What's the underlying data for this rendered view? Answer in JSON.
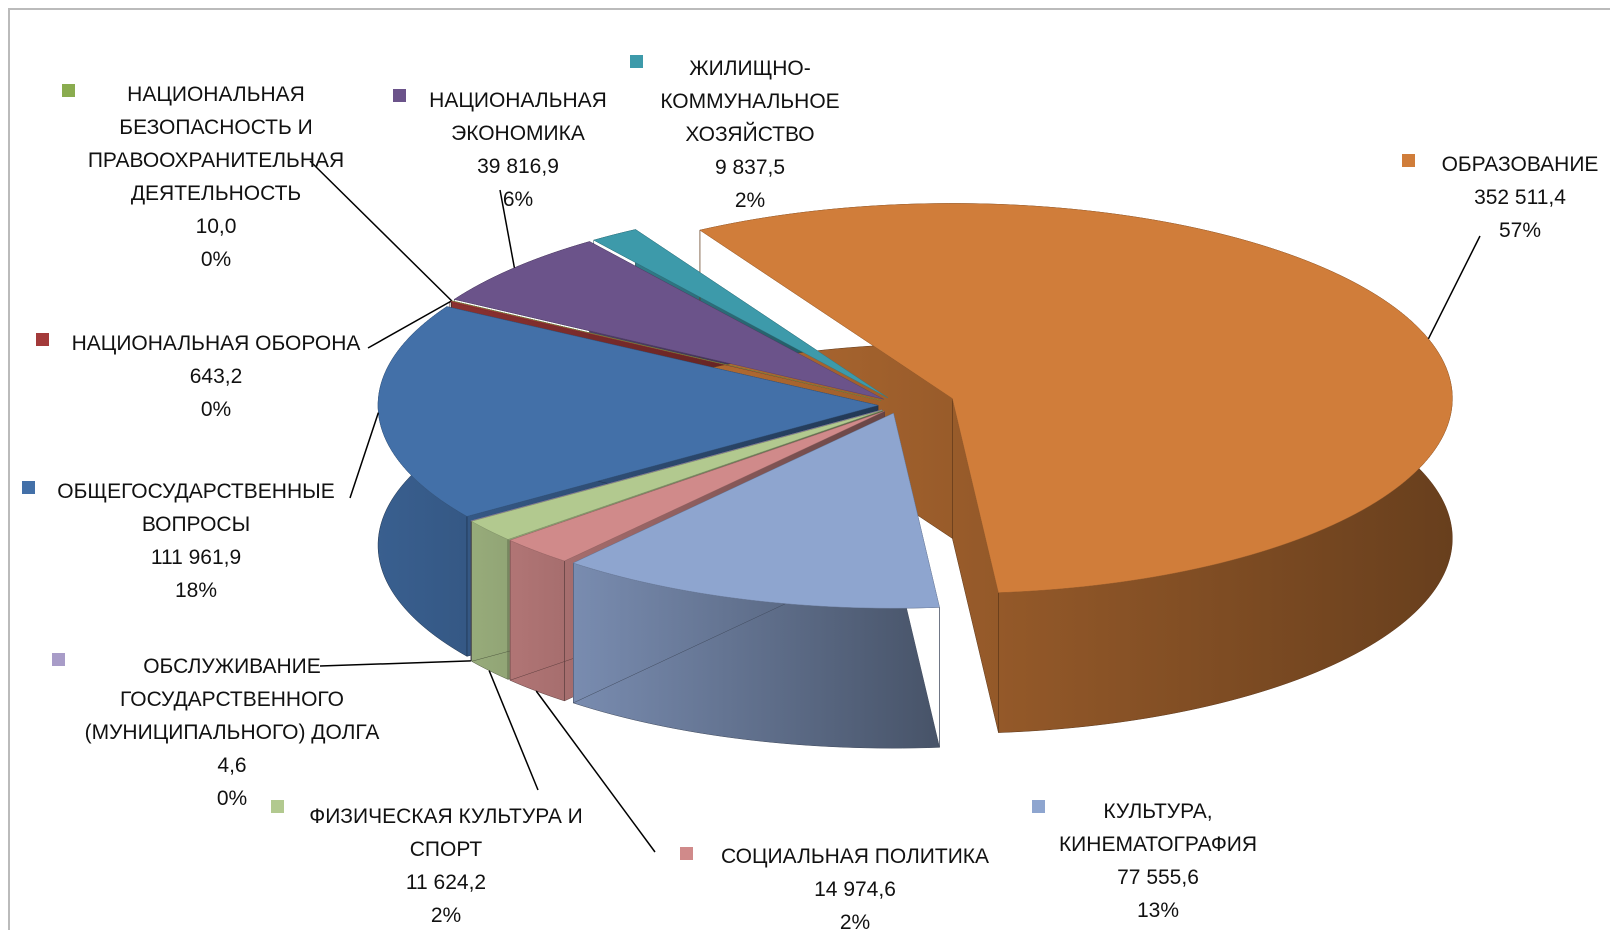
{
  "chart_data": {
    "type": "pie",
    "categories": [
      "ОБРАЗОВАНИЕ",
      "КУЛЬТУРА, КИНЕМАТОГРАФИЯ",
      "СОЦИАЛЬНАЯ ПОЛИТИКА",
      "ФИЗИЧЕСКАЯ КУЛЬТУРА И СПОРТ",
      "ОБСЛУЖИВАНИЕ ГОСУДАРСТВЕННОГО (МУНИЦИПАЛЬНОГО) ДОЛГА",
      "ОБЩЕГОСУДАРСТВЕННЫЕ ВОПРОСЫ",
      "НАЦИОНАЛЬНАЯ ОБОРОНА",
      "НАЦИОНАЛЬНАЯ БЕЗОПАСНОСТЬ И ПРАВООХРАНИТЕЛЬНАЯ ДЕЯТЕЛЬНОСТЬ",
      "НАЦИОНАЛЬНАЯ ЭКОНОМИКА",
      "ЖИЛИЩНО-КОММУНАЛЬНОЕ ХОЗЯЙСТВО"
    ],
    "values": [
      352511.4,
      77555.6,
      14974.6,
      11624.2,
      4.6,
      111961.9,
      643.2,
      10.0,
      39816.9,
      9837.5
    ],
    "value_labels": [
      "352 511,4",
      "77 555,6",
      "14 974,6",
      "11 624,2",
      "4,6",
      "111 961,9",
      "643,2",
      "10,0",
      "39 816,9",
      "9 837,5"
    ],
    "percent_labels": [
      "57%",
      "13%",
      "2%",
      "2%",
      "0%",
      "18%",
      "0%",
      "0%",
      "6%",
      "2%"
    ],
    "colors": [
      "#d07d3a",
      "#8ea5cf",
      "#d08a8a",
      "#b2c98f",
      "#a89cc8",
      "#4370a8",
      "#a33a3a",
      "#8aac4f",
      "#6b538a",
      "#3d9aaa"
    ]
  }
}
